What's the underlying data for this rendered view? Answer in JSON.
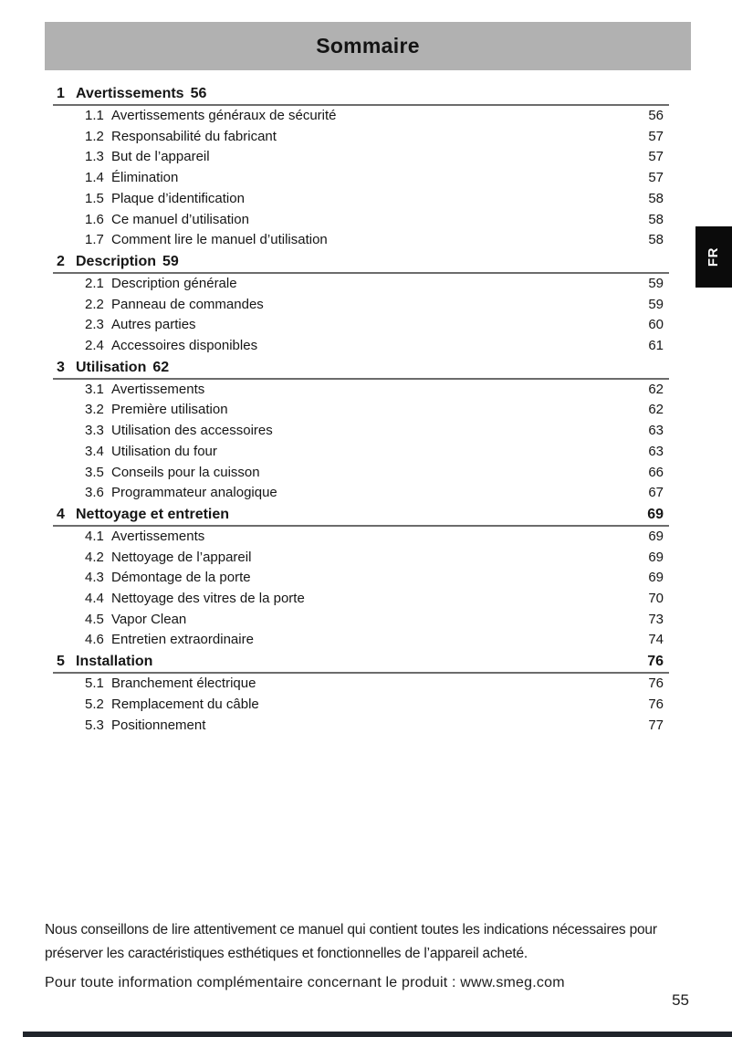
{
  "header": {
    "title": "Sommaire",
    "language_tab": "FR"
  },
  "toc": {
    "sections": [
      {
        "number": "1",
        "title": "Avertissements",
        "page": "56",
        "page_position": "inline",
        "items": [
          {
            "number": "1.1",
            "title": "Avertissements généraux de sécurité",
            "page": "56"
          },
          {
            "number": "1.2",
            "title": "Responsabilité du fabricant",
            "page": "57"
          },
          {
            "number": "1.3",
            "title": "But de l’appareil",
            "page": "57"
          },
          {
            "number": "1.4",
            "title": "Élimination",
            "page": "57"
          },
          {
            "number": "1.5",
            "title": "Plaque d’identification",
            "page": "58"
          },
          {
            "number": "1.6",
            "title": "Ce manuel d’utilisation",
            "page": "58"
          },
          {
            "number": "1.7",
            "title": "Comment lire le manuel d’utilisation",
            "page": "58"
          }
        ]
      },
      {
        "number": "2",
        "title": "Description",
        "page": "59",
        "page_position": "inline",
        "items": [
          {
            "number": "2.1",
            "title": "Description générale",
            "page": "59"
          },
          {
            "number": "2.2",
            "title": "Panneau de commandes",
            "page": "59"
          },
          {
            "number": "2.3",
            "title": "Autres parties",
            "page": "60"
          },
          {
            "number": "2.4",
            "title": "Accessoires disponibles",
            "page": "61"
          }
        ]
      },
      {
        "number": "3",
        "title": "Utilisation",
        "page": "62",
        "page_position": "inline",
        "items": [
          {
            "number": "3.1",
            "title": "Avertissements",
            "page": "62"
          },
          {
            "number": "3.2",
            "title": "Première utilisation",
            "page": "62"
          },
          {
            "number": "3.3",
            "title": "Utilisation des accessoires",
            "page": "63"
          },
          {
            "number": "3.4",
            "title": "Utilisation du four",
            "page": "63"
          },
          {
            "number": "3.5",
            "title": "Conseils pour la cuisson",
            "page": "66"
          },
          {
            "number": "3.6",
            "title": "Programmateur analogique",
            "page": "67"
          }
        ]
      },
      {
        "number": "4",
        "title": "Nettoyage et entretien",
        "page": "69",
        "page_position": "right",
        "items": [
          {
            "number": "4.1",
            "title": "Avertissements",
            "page": "69"
          },
          {
            "number": "4.2",
            "title": "Nettoyage de l’appareil",
            "page": "69"
          },
          {
            "number": "4.3",
            "title": "Démontage de la porte",
            "page": "69"
          },
          {
            "number": "4.4",
            "title": "Nettoyage des vitres de la porte",
            "page": "70"
          },
          {
            "number": "4.5",
            "title": "Vapor Clean",
            "page": "73"
          },
          {
            "number": "4.6",
            "title": "Entretien extraordinaire",
            "page": "74"
          }
        ]
      },
      {
        "number": "5",
        "title": "Installation",
        "page": "76",
        "page_position": "right",
        "items": [
          {
            "number": "5.1",
            "title": "Branchement électrique",
            "page": "76"
          },
          {
            "number": "5.2",
            "title": "Remplacement du câble",
            "page": "76"
          },
          {
            "number": "5.3",
            "title": "Positionnement",
            "page": "77"
          }
        ]
      }
    ]
  },
  "footer": {
    "note": "Nous conseillons de lire attentivement ce manuel qui contient toutes les indications nécessaires pour préserver les caractéristiques esthétiques et fonctionnelles de l’appareil acheté.",
    "info": "Pour toute information complémentaire concernant le produit : www.smeg.com",
    "page_number": "55"
  },
  "colors": {
    "title_bar_bg": "#b1b1b1",
    "language_tab_bg": "#0b0b0b",
    "rule": "#6c6c6c",
    "bottom_bar": "#20242b",
    "text": "#161616"
  }
}
